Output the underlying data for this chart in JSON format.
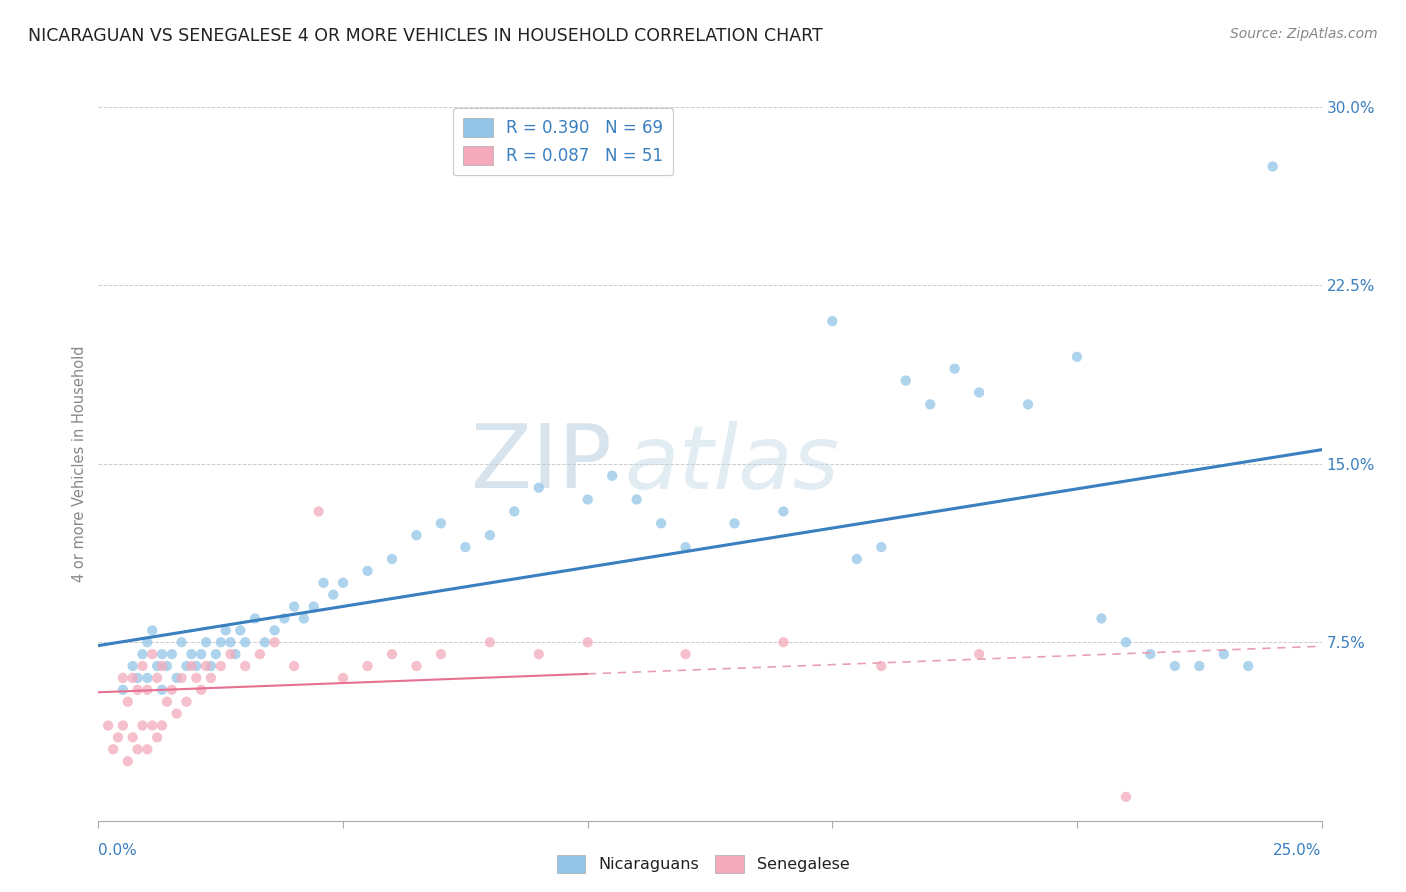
{
  "title": "NICARAGUAN VS SENEGALESE 4 OR MORE VEHICLES IN HOUSEHOLD CORRELATION CHART",
  "source": "Source: ZipAtlas.com",
  "ylabel": "4 or more Vehicles in Household",
  "xlim": [
    0.0,
    0.25
  ],
  "ylim": [
    0.0,
    0.3
  ],
  "ytick_positions": [
    0.0,
    0.075,
    0.15,
    0.225,
    0.3
  ],
  "ytick_labels": [
    "",
    "7.5%",
    "15.0%",
    "22.5%",
    "30.0%"
  ],
  "nicaraguan_R": 0.39,
  "nicaraguan_N": 69,
  "senegalese_R": 0.087,
  "senegalese_N": 51,
  "nicaraguan_color": "#92C5E8",
  "senegalese_color": "#F4AABB",
  "trend_nicaraguan_color": "#3A7FBF",
  "trend_senegalese_color": "#E87090",
  "trend_senegalese_dashed_color": "#E8A0B0",
  "watermark_color": "#C8D8E8",
  "background_color": "#ffffff",
  "nic_x": [
    0.005,
    0.007,
    0.008,
    0.009,
    0.01,
    0.01,
    0.011,
    0.012,
    0.013,
    0.013,
    0.014,
    0.015,
    0.016,
    0.017,
    0.018,
    0.019,
    0.02,
    0.021,
    0.022,
    0.023,
    0.024,
    0.025,
    0.026,
    0.027,
    0.028,
    0.029,
    0.03,
    0.032,
    0.034,
    0.036,
    0.038,
    0.04,
    0.042,
    0.044,
    0.046,
    0.048,
    0.05,
    0.055,
    0.06,
    0.065,
    0.07,
    0.075,
    0.08,
    0.085,
    0.09,
    0.1,
    0.105,
    0.11,
    0.115,
    0.12,
    0.13,
    0.14,
    0.15,
    0.155,
    0.16,
    0.165,
    0.17,
    0.175,
    0.18,
    0.19,
    0.2,
    0.205,
    0.21,
    0.215,
    0.22,
    0.225,
    0.23,
    0.235,
    0.24
  ],
  "nic_y": [
    0.055,
    0.065,
    0.06,
    0.07,
    0.06,
    0.075,
    0.08,
    0.065,
    0.07,
    0.055,
    0.065,
    0.07,
    0.06,
    0.075,
    0.065,
    0.07,
    0.065,
    0.07,
    0.075,
    0.065,
    0.07,
    0.075,
    0.08,
    0.075,
    0.07,
    0.08,
    0.075,
    0.085,
    0.075,
    0.08,
    0.085,
    0.09,
    0.085,
    0.09,
    0.1,
    0.095,
    0.1,
    0.105,
    0.11,
    0.12,
    0.125,
    0.115,
    0.12,
    0.13,
    0.14,
    0.135,
    0.145,
    0.135,
    0.125,
    0.115,
    0.125,
    0.13,
    0.21,
    0.11,
    0.115,
    0.185,
    0.175,
    0.19,
    0.18,
    0.175,
    0.195,
    0.085,
    0.075,
    0.07,
    0.065,
    0.065,
    0.07,
    0.065,
    0.275
  ],
  "sen_x": [
    0.002,
    0.003,
    0.004,
    0.005,
    0.005,
    0.006,
    0.006,
    0.007,
    0.007,
    0.008,
    0.008,
    0.009,
    0.009,
    0.01,
    0.01,
    0.011,
    0.011,
    0.012,
    0.012,
    0.013,
    0.013,
    0.014,
    0.015,
    0.016,
    0.017,
    0.018,
    0.019,
    0.02,
    0.021,
    0.022,
    0.023,
    0.025,
    0.027,
    0.03,
    0.033,
    0.036,
    0.04,
    0.045,
    0.05,
    0.055,
    0.06,
    0.065,
    0.07,
    0.08,
    0.09,
    0.1,
    0.12,
    0.14,
    0.16,
    0.18,
    0.21
  ],
  "sen_y": [
    0.04,
    0.03,
    0.035,
    0.04,
    0.06,
    0.025,
    0.05,
    0.035,
    0.06,
    0.03,
    0.055,
    0.04,
    0.065,
    0.03,
    0.055,
    0.04,
    0.07,
    0.035,
    0.06,
    0.04,
    0.065,
    0.05,
    0.055,
    0.045,
    0.06,
    0.05,
    0.065,
    0.06,
    0.055,
    0.065,
    0.06,
    0.065,
    0.07,
    0.065,
    0.07,
    0.075,
    0.065,
    0.13,
    0.06,
    0.065,
    0.07,
    0.065,
    0.07,
    0.075,
    0.07,
    0.075,
    0.07,
    0.075,
    0.065,
    0.07,
    0.01
  ]
}
